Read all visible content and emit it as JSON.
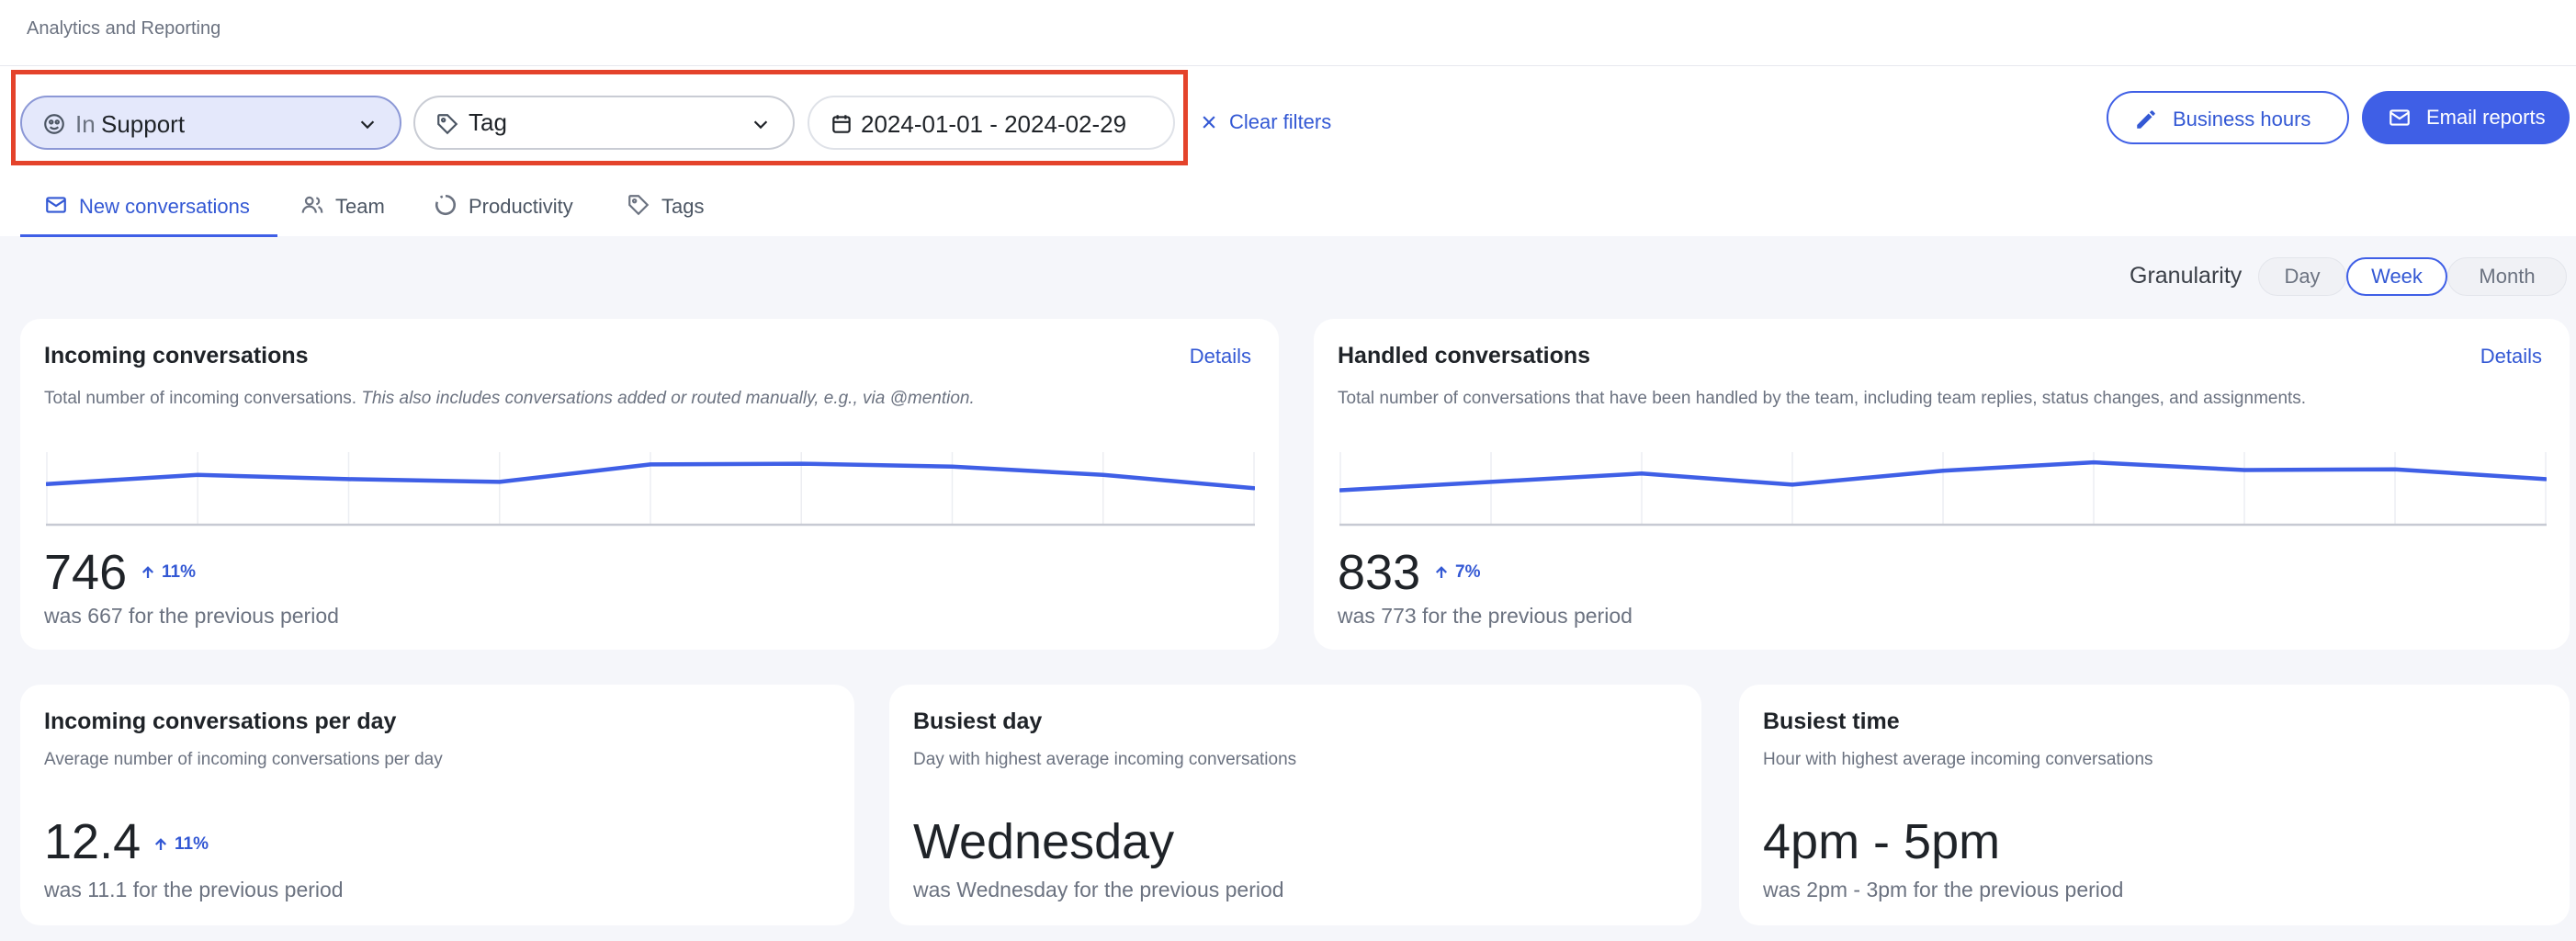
{
  "breadcrumb": "Analytics and Reporting",
  "filters": {
    "inbox_prefix": "In",
    "inbox_value": "Support",
    "tag_value": "Tag",
    "date_value": "2024-01-01 - 2024-02-29",
    "clear_label": "Clear filters"
  },
  "actions": {
    "business_hours_label": "Business hours",
    "email_reports_label": "Email reports"
  },
  "tabs": [
    {
      "label": "New conversations",
      "active": true
    },
    {
      "label": "Team",
      "active": false
    },
    {
      "label": "Productivity",
      "active": false
    },
    {
      "label": "Tags",
      "active": false
    }
  ],
  "granularity": {
    "label": "Granularity",
    "options": [
      "Day",
      "Week",
      "Month"
    ],
    "selected": "Week"
  },
  "cards": {
    "incoming": {
      "title": "Incoming conversations",
      "details": "Details",
      "desc_plain": "Total number of incoming conversations. ",
      "desc_italic": "This also includes conversations added or routed manually, e.g., via @mention.",
      "value": "746",
      "delta": "11%",
      "previous": "was 667 for the previous period",
      "sparkline": [
        0.57,
        0.7,
        0.64,
        0.6,
        0.85,
        0.86,
        0.82,
        0.7,
        0.51
      ]
    },
    "handled": {
      "title": "Handled conversations",
      "details": "Details",
      "desc": "Total number of conversations that have been handled by the team, including team replies, status changes, and assignments.",
      "value": "833",
      "delta": "7%",
      "previous": "was 773 for the previous period",
      "sparkline": [
        0.48,
        0.6,
        0.72,
        0.56,
        0.76,
        0.88,
        0.77,
        0.78,
        0.64
      ]
    },
    "per_day": {
      "title": "Incoming conversations per day",
      "desc": "Average number of incoming conversations per day",
      "value": "12.4",
      "delta": "11%",
      "previous": "was 11.1 for the previous period"
    },
    "busiest_day": {
      "title": "Busiest day",
      "desc": "Day with highest average incoming conversations",
      "value": "Wednesday",
      "previous": "was Wednesday for the previous period"
    },
    "busiest_time": {
      "title": "Busiest time",
      "desc": "Hour with highest average incoming conversations",
      "value": "4pm - 5pm",
      "previous": "was 2pm - 3pm for the previous period"
    }
  },
  "colors": {
    "accent": "#3f5fe6",
    "highlight": "#e4432b"
  }
}
